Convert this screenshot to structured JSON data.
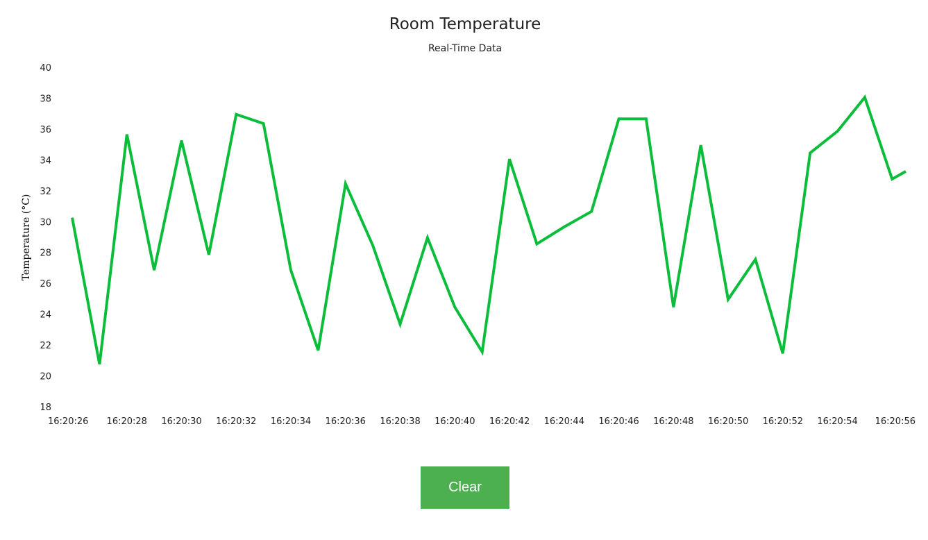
{
  "button": {
    "label": "Clear",
    "color": "#4CAF50"
  },
  "chart_data": {
    "type": "line",
    "title": "Room Temperature",
    "subtitle": "Real-Time Data",
    "ylabel": "Temperature (°C)",
    "xlabel": "",
    "ylim": [
      18,
      40
    ],
    "yticks": [
      18,
      20,
      22,
      24,
      26,
      28,
      30,
      32,
      34,
      36,
      38,
      40
    ],
    "grid": false,
    "line_color": "#0BBD3A",
    "x": [
      "16:20:26",
      "16:20:27",
      "16:20:28",
      "16:20:29",
      "16:20:30",
      "16:20:31",
      "16:20:32",
      "16:20:33",
      "16:20:34",
      "16:20:35",
      "16:20:36",
      "16:20:37",
      "16:20:38",
      "16:20:39",
      "16:20:40",
      "16:20:41",
      "16:20:42",
      "16:20:43",
      "16:20:44",
      "16:20:45",
      "16:20:46",
      "16:20:47",
      "16:20:48",
      "16:20:49",
      "16:20:50",
      "16:20:51",
      "16:20:52",
      "16:20:53",
      "16:20:54",
      "16:20:55",
      "16:20:56",
      "16:20:56.5"
    ],
    "values": [
      30.3,
      20.8,
      35.7,
      26.9,
      35.3,
      27.9,
      37.0,
      36.4,
      26.9,
      21.7,
      32.5,
      28.5,
      23.4,
      29.0,
      24.5,
      21.6,
      34.1,
      28.6,
      29.7,
      30.7,
      36.7,
      36.7,
      24.5,
      35.0,
      25.0,
      27.6,
      21.5,
      34.5,
      35.9,
      38.1,
      32.8,
      33.3
    ],
    "xticks": [
      "16:20:26",
      "16:20:28",
      "16:20:30",
      "16:20:32",
      "16:20:34",
      "16:20:36",
      "16:20:38",
      "16:20:40",
      "16:20:42",
      "16:20:44",
      "16:20:46",
      "16:20:48",
      "16:20:50",
      "16:20:52",
      "16:20:54",
      "16:20:56"
    ]
  }
}
